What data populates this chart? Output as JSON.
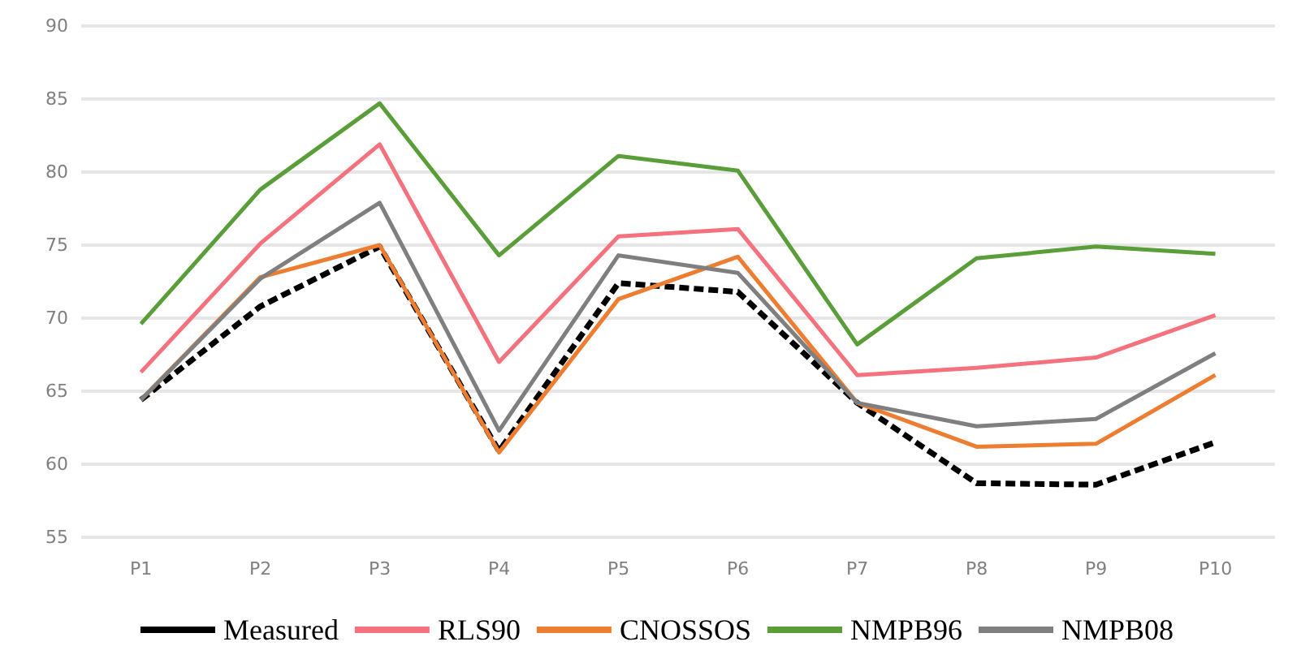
{
  "chart_data": {
    "type": "line",
    "categories": [
      "P1",
      "P2",
      "P3",
      "P4",
      "P5",
      "P6",
      "P7",
      "P8",
      "P9",
      "P10"
    ],
    "series": [
      {
        "name": "Measured",
        "color": "#000000",
        "line_style": "dashed",
        "values": [
          64.4,
          70.8,
          74.9,
          60.9,
          72.4,
          71.8,
          64.2,
          58.7,
          58.6,
          61.5
        ]
      },
      {
        "name": "RLS90",
        "color": "#f4727e",
        "values": [
          66.3,
          75.1,
          81.9,
          67.0,
          75.6,
          76.1,
          66.1,
          66.6,
          67.3,
          70.2
        ]
      },
      {
        "name": "CNOSSOS",
        "color": "#ed7d31",
        "values": [
          64.4,
          72.8,
          75.0,
          60.8,
          71.3,
          74.2,
          64.2,
          61.2,
          61.4,
          66.1
        ]
      },
      {
        "name": "NMPB96",
        "color": "#5a9e3a",
        "values": [
          69.6,
          78.8,
          84.7,
          74.3,
          81.1,
          80.1,
          68.2,
          74.1,
          74.9,
          74.4
        ]
      },
      {
        "name": "NMPB08",
        "color": "#7f7f7f",
        "values": [
          64.4,
          72.7,
          77.9,
          62.3,
          74.3,
          73.1,
          64.2,
          62.6,
          63.1,
          67.6
        ]
      }
    ],
    "ylim": [
      55,
      90
    ],
    "yticks": [
      55,
      60,
      65,
      70,
      75,
      80,
      85,
      90
    ],
    "grid": "y",
    "legend": "bottom",
    "marker": "none",
    "line_style": "solid"
  }
}
